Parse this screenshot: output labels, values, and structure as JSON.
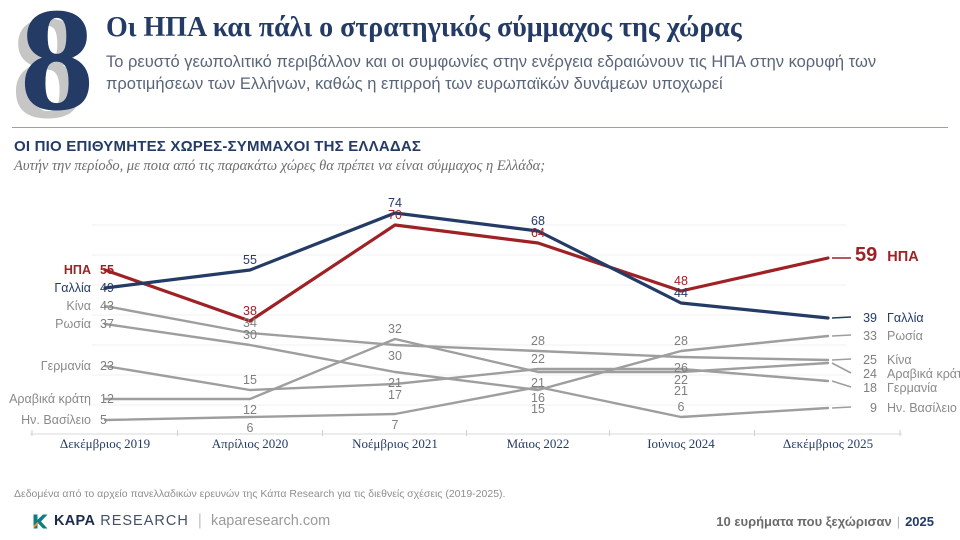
{
  "slide": {
    "number": "8",
    "title": "Οι ΗΠΑ και πάλι ο στρατηγικός σύμμαχος της χώρας",
    "subtitle": "Το ρευστό γεωπολιτικό περιβάλλον και οι συμφωνίες στην ενέργεια εδραιώνουν τις ΗΠΑ στην κορυφή των προτιμήσεων των Ελλήνων, καθώς η επιρροή των ευρωπαϊκών δυνάμεων υποχωρεί"
  },
  "chart_header": {
    "title": "ΟΙ ΠΙΟ ΕΠΙΘΥΜΗΤΕΣ ΧΩΡΕΣ-ΣΥΜΜΑΧΟΙ ΤΗΣ ΕΛΛΑΔΑΣ",
    "question": "Αυτήν την περίοδο, με ποια από τις παρακάτω χώρες θα πρέπει να είναι σύμμαχος η Ελλάδα;"
  },
  "chart_data": {
    "type": "line",
    "categories": [
      "Δεκέμβριος 2019",
      "Απρίλιος 2020",
      "Νοέμβριος 2021",
      "Μάιος 2022",
      "Ιούνιος 2024",
      "Δεκέμβριος 2025"
    ],
    "series": [
      {
        "name": "ΗΠΑ",
        "color": "#9e2125",
        "role": "emphasis",
        "values": [
          55,
          38,
          70,
          64,
          48,
          59
        ]
      },
      {
        "name": "Γαλλία",
        "color": "#243b66",
        "role": "secondary",
        "values": [
          49,
          55,
          74,
          68,
          44,
          39
        ]
      },
      {
        "name": "Κίνα",
        "color": "#9e9e9e",
        "role": "gray",
        "values": [
          43,
          34,
          30,
          28,
          26,
          25
        ]
      },
      {
        "name": "Ρωσία",
        "color": "#9e9e9e",
        "role": "gray",
        "values": [
          37,
          30,
          21,
          15,
          28,
          33
        ]
      },
      {
        "name": "Γερμανία",
        "color": "#9e9e9e",
        "role": "gray",
        "values": [
          23,
          15,
          17,
          22,
          22,
          18
        ]
      },
      {
        "name": "Αραβικά κράτη",
        "color": "#9e9e9e",
        "role": "gray",
        "values": [
          12,
          12,
          32,
          21,
          21,
          24
        ]
      },
      {
        "name": "Ην. Βασίλειο",
        "color": "#9e9e9e",
        "role": "gray",
        "values": [
          5,
          6,
          7,
          16,
          6,
          9
        ]
      }
    ],
    "ylim": [
      0,
      80
    ],
    "grid": true,
    "legend_position": "both-sides",
    "title": "ΟΙ ΠΙΟ ΕΠΙΘΥΜΗΤΕΣ ΧΩΡΕΣ-ΣΥΜΜΑΧΟΙ ΤΗΣ ΕΛΛΑΔΑΣ"
  },
  "footnote": "Δεδομένα από το αρχείο πανελλαδικών ερευνών της Κάπα Research  για τις διεθνείς σχέσεις (2019-2025).",
  "footer": {
    "brand_bold": "KAPA",
    "brand_light": "RESEARCH",
    "website": "kaparesearch.com",
    "right_text": "10 ευρήματα που ξεχώρισαν",
    "year": "2025"
  },
  "colors": {
    "navy": "#243b66",
    "red": "#9e2125",
    "gray_line": "#9e9e9e",
    "logo_teal": "#0f7e82",
    "logo_orange": "#ef8d2f"
  }
}
